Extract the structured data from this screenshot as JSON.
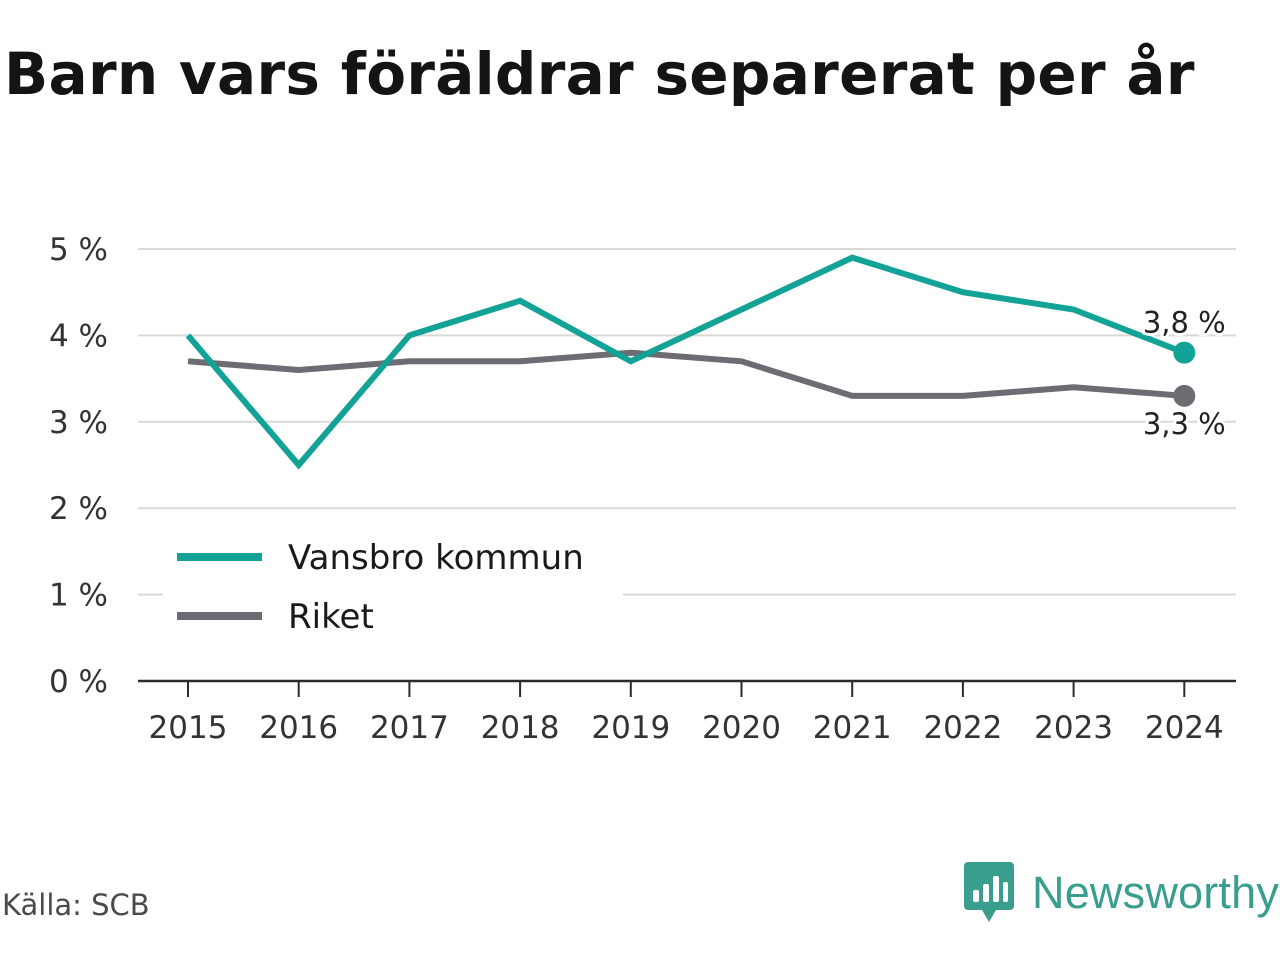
{
  "title": "Barn vars föräldrar separerat per år",
  "source": "Källa: SCB",
  "brand": {
    "name": "Newsworthy",
    "icon": "newsworthy-logo-icon",
    "color": "#3a9e8f"
  },
  "chart_data": {
    "type": "line",
    "title": "Barn vars föräldrar separerat per år",
    "xlabel": "",
    "ylabel": "",
    "x": [
      "2015",
      "2016",
      "2017",
      "2018",
      "2019",
      "2020",
      "2021",
      "2022",
      "2023",
      "2024"
    ],
    "yticks": [
      "0 %",
      "1 %",
      "2 %",
      "3 %",
      "4 %",
      "5 %"
    ],
    "ylim": [
      0,
      5
    ],
    "grid": true,
    "legend_position": "bottom-left",
    "series": [
      {
        "name": "Vansbro kommun",
        "color": "#13a396",
        "values": [
          4.0,
          2.5,
          4.0,
          4.4,
          3.7,
          4.3,
          4.9,
          4.5,
          4.3,
          3.8
        ],
        "end_label": "3,8 %"
      },
      {
        "name": "Riket",
        "color": "#6d6c73",
        "values": [
          3.7,
          3.6,
          3.7,
          3.7,
          3.8,
          3.7,
          3.3,
          3.3,
          3.4,
          3.3
        ],
        "end_label": "3,3 %"
      }
    ]
  }
}
